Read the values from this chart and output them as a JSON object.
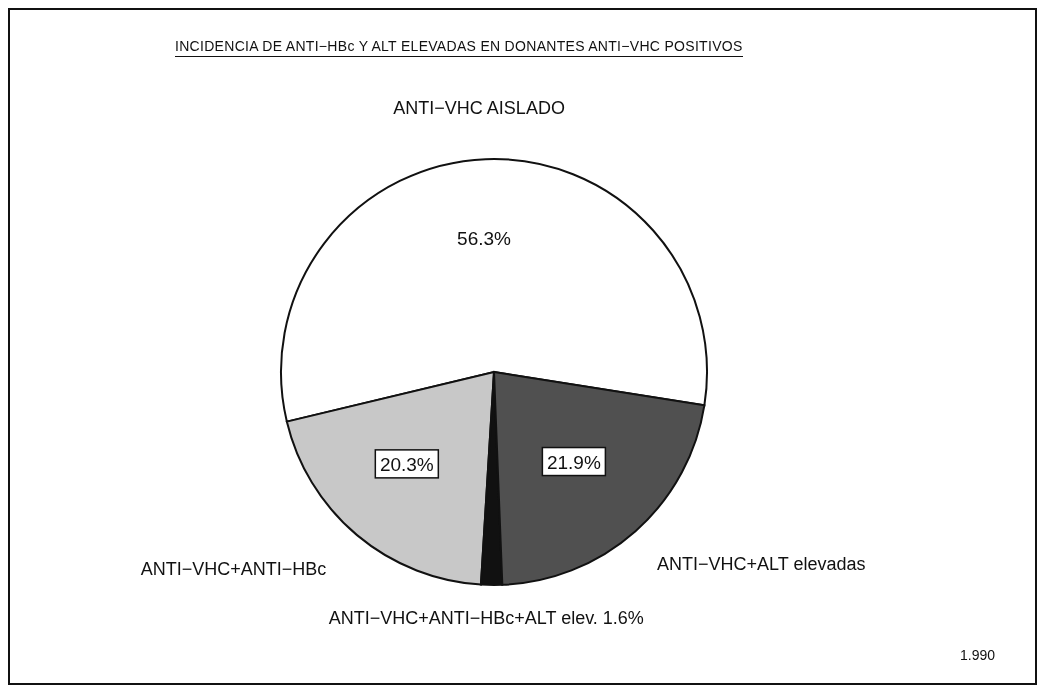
{
  "chart_data": {
    "type": "pie",
    "title": "INCIDENCIA DE ANTI−HBc Y ALT ELEVADAS EN DONANTES ANTI−VHC POSITIVOS",
    "categories": [
      "ANTI−VHC AISLADO",
      "ANTI−VHC+ANTI−HBc",
      "ANTI−VHC+ANTI−HBc+ALT elev.",
      "ANTI−VHC+ALT elevadas"
    ],
    "values": [
      56.3,
      20.3,
      1.6,
      21.9
    ],
    "value_labels": [
      "56.3%",
      "20.3%",
      "1.6%",
      "21.9%"
    ],
    "colors": [
      "#ffffff",
      "#c8c8c8",
      "#111111",
      "#505050"
    ],
    "annotations": [
      "1.990"
    ]
  }
}
